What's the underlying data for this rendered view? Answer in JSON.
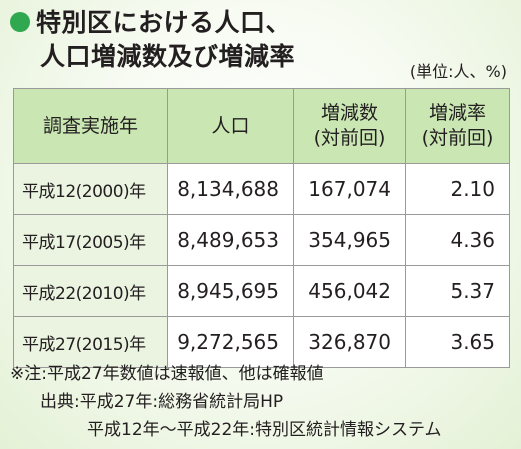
{
  "title": {
    "line1": "特別区における人口、",
    "line2": "人口増減数及び増減率"
  },
  "unit": "(単位:人、%)",
  "table": {
    "headers": [
      {
        "line1": "調査実施年",
        "line2": ""
      },
      {
        "line1": "人口",
        "line2": ""
      },
      {
        "line1": "増減数",
        "line2": "(対前回)"
      },
      {
        "line1": "増減率",
        "line2": "(対前回)"
      }
    ],
    "rows": [
      {
        "year": "平成12(2000)年",
        "population": "8,134,688",
        "change": "167,074",
        "rate": "2.10"
      },
      {
        "year": "平成17(2005)年",
        "population": "8,489,653",
        "change": "354,965",
        "rate": "4.36"
      },
      {
        "year": "平成22(2010)年",
        "population": "8,945,695",
        "change": "456,042",
        "rate": "5.37"
      },
      {
        "year": "平成27(2015)年",
        "population": "9,272,565",
        "change": "326,870",
        "rate": "3.65"
      }
    ]
  },
  "notes": {
    "note": "※注:平成27年数値は速報値、他は確報値",
    "source1": "出典:平成27年:総務省統計局HP",
    "source2": "平成12年〜平成22年:特別区統計情報システム"
  },
  "colors": {
    "bullet": "#2fa84f",
    "header_bg": "#c9e6b3",
    "year_bg": "#eaf4e1",
    "border": "#9a9a9a"
  }
}
